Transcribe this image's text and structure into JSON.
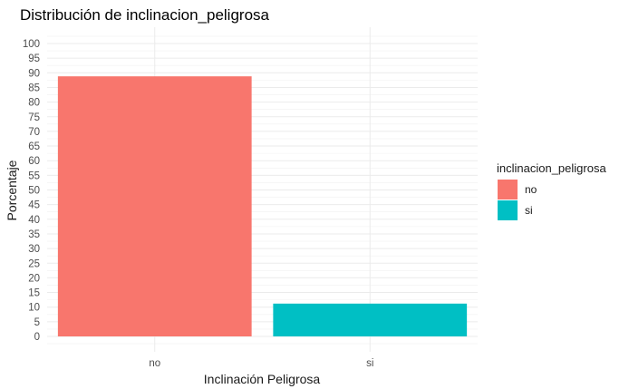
{
  "chart_data": {
    "type": "bar",
    "title": "Distribución de inclinacion_peligrosa",
    "xlabel": "Inclinación Peligrosa",
    "ylabel": "Porcentaje",
    "categories": [
      "no",
      "si"
    ],
    "values": [
      88.8,
      11.2
    ],
    "colors": [
      "#F8766D",
      "#00BFC4"
    ],
    "ylim": [
      0,
      100
    ],
    "yticks": [
      0,
      5,
      10,
      15,
      20,
      25,
      30,
      35,
      40,
      45,
      50,
      55,
      60,
      65,
      70,
      75,
      80,
      85,
      90,
      95,
      100
    ],
    "grid": true,
    "legend": {
      "title": "inclinacion_peligrosa",
      "position": "right",
      "entries": [
        {
          "label": "no",
          "color": "#F8766D"
        },
        {
          "label": "si",
          "color": "#00BFC4"
        }
      ]
    }
  }
}
